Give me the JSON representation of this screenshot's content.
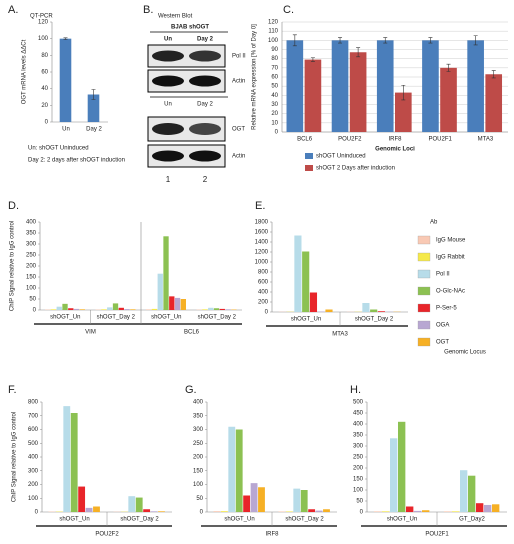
{
  "chart_data": [
    {
      "type": "bar",
      "label": "A.",
      "title": "QT-PCR",
      "ylabel": "OGT mRNA levels ΔΔCt",
      "categories": [
        "Un",
        "Day 2"
      ],
      "values": [
        100,
        33
      ],
      "errors": [
        1,
        6
      ],
      "color": "#4a7ebb",
      "ylim": [
        0,
        120
      ],
      "yticks": [
        0,
        20,
        40,
        60,
        80,
        100,
        120
      ],
      "notes": [
        "Un: shOGT Uninduced",
        "Day 2: 2 days after shOGT induction"
      ]
    },
    {
      "type": "blot",
      "label": "B.",
      "title": "Western Blot",
      "cell_line": "BJAB shOGT",
      "lanes_top": [
        "Un",
        "Day 2"
      ],
      "blots_top": [
        "Pol II",
        "Actin"
      ],
      "lanes_mid": [
        "Un",
        "Day 2"
      ],
      "blots_bottom": [
        "OGT",
        "Actin"
      ],
      "lane_numbers": [
        "1",
        "2"
      ]
    },
    {
      "type": "bar",
      "label": "C.",
      "ylabel": "Relative mRNA expression [% of Day 0]",
      "xlabel": "Genomic Loci",
      "categories": [
        "BCL6",
        "POU2F2",
        "IRF8",
        "POU2F1",
        "MTA3"
      ],
      "series": [
        {
          "name": "shOGT Uninduced",
          "color": "#4a7ebb",
          "values": [
            100,
            100,
            100,
            100,
            100
          ],
          "errors": [
            6,
            3,
            3,
            3,
            5
          ]
        },
        {
          "name": "shOGT 2 Days after induction",
          "color": "#be4b48",
          "values": [
            79,
            87,
            43,
            70,
            63
          ],
          "errors": [
            2,
            5,
            8,
            4,
            4
          ]
        }
      ],
      "ylim": [
        0,
        120
      ],
      "yticks": [
        0,
        10,
        20,
        30,
        40,
        50,
        60,
        70,
        80,
        90,
        100,
        110,
        120
      ],
      "grid": true,
      "legend": "bottom"
    },
    {
      "type": "bar",
      "label": "D.",
      "ylabel": "ChIP Signal relative to IgG control",
      "categories": [
        "shOGT_Un",
        "shOGT_Day 2",
        "shOGT_Un",
        "shOGT_Day 2"
      ],
      "loci": [
        "VIM",
        "BCL6"
      ],
      "series": [
        {
          "name": "IgG Mouse",
          "color": "#f9c9b4",
          "values": [
            2,
            2,
            3,
            2
          ]
        },
        {
          "name": "IgG Rabbit",
          "color": "#f5e94a",
          "values": [
            3,
            3,
            5,
            3
          ]
        },
        {
          "name": "Pol II",
          "color": "#b7dce9",
          "values": [
            15,
            12,
            165,
            10
          ]
        },
        {
          "name": "O-Glc-NAc",
          "color": "#8cc152",
          "values": [
            28,
            30,
            335,
            8
          ]
        },
        {
          "name": "P-Ser-5",
          "color": "#e8252a",
          "values": [
            8,
            10,
            62,
            5
          ]
        },
        {
          "name": "OGA",
          "color": "#b8a7d2",
          "values": [
            5,
            4,
            55,
            3
          ]
        },
        {
          "name": "OGT",
          "color": "#f6b025",
          "values": [
            3,
            3,
            50,
            2
          ]
        }
      ],
      "ylim": [
        0,
        400
      ],
      "yticks": [
        0,
        50,
        100,
        150,
        200,
        250,
        300,
        350,
        400
      ]
    },
    {
      "type": "bar",
      "label": "E.",
      "categories": [
        "shOGT_Un",
        "shOGT_Day 2"
      ],
      "loci": [
        "MTA3"
      ],
      "annotation": "Genomic Locus",
      "legend_title": "Ab",
      "legend": "right",
      "series": [
        {
          "name": "IgG Mouse",
          "color": "#f9c9b4",
          "values": [
            5,
            5
          ]
        },
        {
          "name": "IgG Rabbit",
          "color": "#f5e94a",
          "values": [
            5,
            5
          ]
        },
        {
          "name": "Pol II",
          "color": "#b7dce9",
          "values": [
            1530,
            180
          ]
        },
        {
          "name": "O-Glc-NAc",
          "color": "#8cc152",
          "values": [
            1210,
            50
          ]
        },
        {
          "name": "P-Ser-5",
          "color": "#e8252a",
          "values": [
            390,
            15
          ]
        },
        {
          "name": "OGA",
          "color": "#b8a7d2",
          "values": [
            10,
            5
          ]
        },
        {
          "name": "OGT",
          "color": "#f6b025",
          "values": [
            50,
            5
          ]
        }
      ],
      "ylim": [
        0,
        1800
      ],
      "yticks": [
        0,
        200,
        400,
        600,
        800,
        1000,
        1200,
        1400,
        1600,
        1800
      ]
    },
    {
      "type": "bar",
      "label": "F.",
      "ylabel": "ChIP Signal relative to IgG control",
      "categories": [
        "shOGT_Un",
        "shOGT_Day 2"
      ],
      "loci": [
        "POU2F2"
      ],
      "series": [
        {
          "name": "IgG Mouse",
          "color": "#f9c9b4",
          "values": [
            3,
            2
          ]
        },
        {
          "name": "IgG Rabbit",
          "color": "#f5e94a",
          "values": [
            3,
            2
          ]
        },
        {
          "name": "Pol II",
          "color": "#b7dce9",
          "values": [
            770,
            115
          ]
        },
        {
          "name": "O-Glc-NAc",
          "color": "#8cc152",
          "values": [
            720,
            105
          ]
        },
        {
          "name": "P-Ser-5",
          "color": "#e8252a",
          "values": [
            185,
            20
          ]
        },
        {
          "name": "OGA",
          "color": "#b8a7d2",
          "values": [
            30,
            5
          ]
        },
        {
          "name": "OGT",
          "color": "#f6b025",
          "values": [
            40,
            5
          ]
        }
      ],
      "ylim": [
        0,
        800
      ],
      "yticks": [
        0,
        100,
        200,
        300,
        400,
        500,
        600,
        700,
        800
      ]
    },
    {
      "type": "bar",
      "label": "G.",
      "categories": [
        "shOGT_Un",
        "shOGT_Day 2"
      ],
      "loci": [
        "IRF8"
      ],
      "series": [
        {
          "name": "IgG Mouse",
          "color": "#f9c9b4",
          "values": [
            3,
            2
          ]
        },
        {
          "name": "IgG Rabbit",
          "color": "#f5e94a",
          "values": [
            3,
            2
          ]
        },
        {
          "name": "Pol II",
          "color": "#b7dce9",
          "values": [
            310,
            85
          ]
        },
        {
          "name": "O-Glc-NAc",
          "color": "#8cc152",
          "values": [
            300,
            80
          ]
        },
        {
          "name": "P-Ser-5",
          "color": "#e8252a",
          "values": [
            60,
            10
          ]
        },
        {
          "name": "OGA",
          "color": "#b8a7d2",
          "values": [
            105,
            5
          ]
        },
        {
          "name": "OGT",
          "color": "#f6b025",
          "values": [
            90,
            10
          ]
        }
      ],
      "ylim": [
        0,
        400
      ],
      "yticks": [
        0,
        50,
        100,
        150,
        200,
        250,
        300,
        350,
        400
      ]
    },
    {
      "type": "bar",
      "label": "H.",
      "categories": [
        "shOGT_Un",
        "GT_Day2"
      ],
      "loci": [
        "POU2F1"
      ],
      "series": [
        {
          "name": "IgG Mouse",
          "color": "#f9c9b4",
          "values": [
            3,
            3
          ]
        },
        {
          "name": "IgG Rabbit",
          "color": "#f5e94a",
          "values": [
            3,
            3
          ]
        },
        {
          "name": "Pol II",
          "color": "#b7dce9",
          "values": [
            335,
            190
          ]
        },
        {
          "name": "O-Glc-NAc",
          "color": "#8cc152",
          "values": [
            410,
            165
          ]
        },
        {
          "name": "P-Ser-5",
          "color": "#e8252a",
          "values": [
            25,
            40
          ]
        },
        {
          "name": "OGA",
          "color": "#b8a7d2",
          "values": [
            5,
            32
          ]
        },
        {
          "name": "OGT",
          "color": "#f6b025",
          "values": [
            8,
            35
          ]
        }
      ],
      "ylim": [
        0,
        500
      ],
      "yticks": [
        0,
        50,
        100,
        150,
        200,
        250,
        300,
        350,
        400,
        450,
        500
      ]
    }
  ]
}
